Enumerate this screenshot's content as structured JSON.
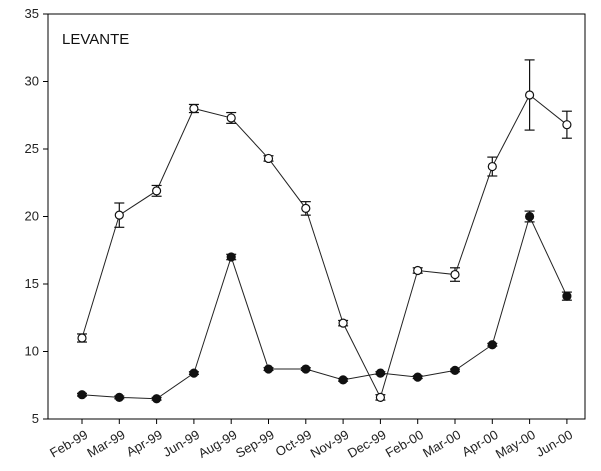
{
  "chart_data": {
    "type": "line",
    "title": "",
    "xlabel": "",
    "ylabel": "",
    "annotation": "LEVANTE",
    "categories": [
      "Feb-99",
      "Mar-99",
      "Apr-99",
      "Jun-99",
      "Aug-99",
      "Sep-99",
      "Oct-99",
      "Nov-99",
      "Dec-99",
      "Feb-00",
      "Mar-00",
      "Apr-00",
      "May-00",
      "Jun-00"
    ],
    "ylim": [
      5,
      35
    ],
    "yticks": [
      5,
      10,
      15,
      20,
      25,
      30,
      35
    ],
    "grid": false,
    "legend": "none",
    "series": [
      {
        "marker": "open-circle",
        "values": [
          11.0,
          20.1,
          21.9,
          28.0,
          27.3,
          24.3,
          20.6,
          12.1,
          6.6,
          16.0,
          15.7,
          23.7,
          29.0,
          26.8
        ],
        "errors": [
          0.3,
          0.9,
          0.4,
          0.3,
          0.4,
          0.2,
          0.5,
          0.2,
          0.2,
          0.2,
          0.5,
          0.7,
          2.6,
          1.0
        ]
      },
      {
        "marker": "filled-circle",
        "values": [
          6.8,
          6.6,
          6.5,
          8.4,
          17.0,
          8.7,
          8.7,
          7.9,
          8.4,
          8.1,
          8.6,
          10.5,
          20.0,
          14.1
        ],
        "errors": [
          0.1,
          0.1,
          0.1,
          0.1,
          0.2,
          0.1,
          0.1,
          0.1,
          0.1,
          0.1,
          0.1,
          0.1,
          0.4,
          0.3
        ]
      }
    ]
  }
}
